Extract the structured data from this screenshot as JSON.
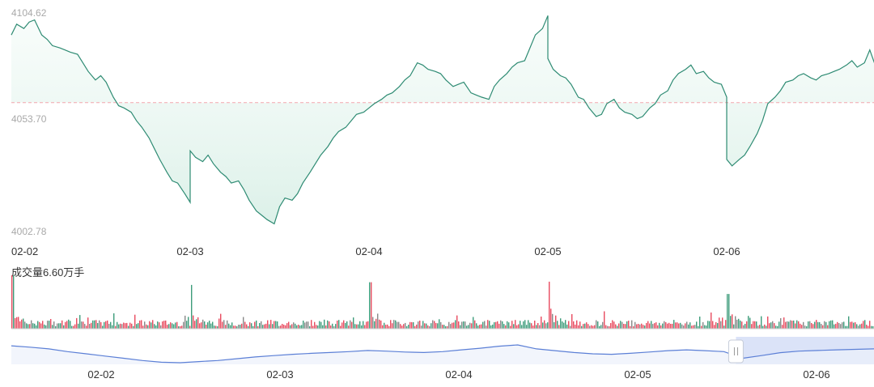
{
  "chart_data": [
    {
      "type": "area",
      "y_ticks": [
        "4104.62",
        "4053.70",
        "4002.78"
      ],
      "x_ticks": [
        "02-02",
        "02-03",
        "02-04",
        "02-05",
        "02-06"
      ],
      "ylim": [
        4002.78,
        4104.62
      ],
      "reference_line": 4062.5,
      "colors": {
        "line": "#2e8b73",
        "fill": "#e4f4ee",
        "ref": "#f4a6ad"
      },
      "series": [
        {
          "x_points": [
            0.0,
            0.03,
            0.07,
            0.1,
            0.13,
            0.17,
            0.2,
            0.23,
            0.27,
            0.3,
            0.33,
            0.37,
            0.4,
            0.43,
            0.47,
            0.5,
            0.53,
            0.57,
            0.6,
            0.63,
            0.67,
            0.7,
            0.73,
            0.77,
            0.8,
            0.83,
            0.87,
            0.9,
            0.93,
            0.97,
            1.0,
            1.0,
            1.03,
            1.07,
            1.1,
            1.13,
            1.17,
            1.2,
            1.23,
            1.27,
            1.3,
            1.33,
            1.37,
            1.4,
            1.43,
            1.47,
            1.5,
            1.53,
            1.57,
            1.6,
            1.63,
            1.67,
            1.7,
            1.73,
            1.77,
            1.8,
            1.83,
            1.87,
            1.9,
            1.93,
            1.97,
            2.0,
            2.0,
            2.03,
            2.07,
            2.1,
            2.13,
            2.17,
            2.2,
            2.23,
            2.27,
            2.3,
            2.33,
            2.37,
            2.4,
            2.43,
            2.47,
            2.5,
            2.53,
            2.57,
            2.6,
            2.63,
            2.67,
            2.7,
            2.73,
            2.77,
            2.8,
            2.83,
            2.87,
            2.9,
            2.93,
            2.97,
            3.0,
            3.0,
            3.03,
            3.07,
            3.1,
            3.13,
            3.17,
            3.2,
            3.23,
            3.27,
            3.3,
            3.33,
            3.37,
            3.4,
            3.43,
            3.47,
            3.5,
            3.53,
            3.57,
            3.6,
            3.63,
            3.67,
            3.7,
            3.73,
            3.77,
            3.8,
            3.83,
            3.87,
            3.9,
            3.93,
            3.97,
            4.0,
            4.0,
            4.03,
            4.07,
            4.1,
            4.13,
            4.17,
            4.2,
            4.23,
            4.27,
            4.3,
            4.33,
            4.37,
            4.4,
            4.43,
            4.47,
            4.5,
            4.53,
            4.57,
            4.6,
            4.63,
            4.67,
            4.7,
            4.73,
            4.77,
            4.8,
            4.83
          ],
          "values": [
            4094,
            4099,
            4097,
            4100,
            4101,
            4094,
            4092,
            4089,
            4088,
            4087,
            4086,
            4085,
            4081,
            4077,
            4073,
            4075,
            4072,
            4065,
            4061,
            4060,
            4058,
            4054,
            4051,
            4046,
            4041,
            4036,
            4030,
            4026,
            4025,
            4020,
            4016,
            4040,
            4037,
            4035,
            4038,
            4034,
            4030,
            4028,
            4025,
            4026,
            4022,
            4017,
            4012,
            4010,
            4008,
            4006,
            4014,
            4018,
            4017,
            4020,
            4025,
            4030,
            4034,
            4038,
            4042,
            4046,
            4049,
            4051,
            4054,
            4057,
            4058,
            4060,
            4060,
            4062,
            4064,
            4066,
            4067,
            4070,
            4073,
            4075,
            4081,
            4080,
            4078,
            4077,
            4076,
            4073,
            4070,
            4071,
            4072,
            4067,
            4066,
            4065,
            4064,
            4070,
            4073,
            4076,
            4079,
            4081,
            4082,
            4088,
            4094,
            4097,
            4103,
            4083,
            4078,
            4075,
            4074,
            4071,
            4065,
            4064,
            4060,
            4056,
            4057,
            4062,
            4064,
            4060,
            4058,
            4057,
            4055,
            4056,
            4060,
            4062,
            4066,
            4068,
            4073,
            4076,
            4078,
            4080,
            4076,
            4077,
            4074,
            4072,
            4071,
            4065,
            4036,
            4033,
            4036,
            4038,
            4042,
            4048,
            4054,
            4062,
            4065,
            4068,
            4072,
            4073,
            4075,
            4076,
            4074,
            4073,
            4075,
            4076,
            4077,
            4078,
            4080,
            4082,
            4079,
            4081,
            4087,
            4080
          ]
        }
      ]
    },
    {
      "type": "bar",
      "label": "成交量6.60万手",
      "colors": {
        "up": "#e84a5f",
        "down": "#3d9c7a",
        "neutral": "#888888"
      },
      "spike_days": [
        0,
        1,
        2,
        3,
        4
      ],
      "spike_values": [
        1.0,
        0.82,
        0.87,
        0.88,
        0.65
      ]
    },
    {
      "type": "area",
      "role": "navigator",
      "x_ticks": [
        "02-02",
        "02-03",
        "02-04",
        "02-05",
        "02-06"
      ],
      "values": [
        4096,
        4090,
        4082,
        4070,
        4060,
        4050,
        4040,
        4030,
        4022,
        4020,
        4025,
        4030,
        4038,
        4046,
        4052,
        4058,
        4062,
        4066,
        4070,
        4075,
        4072,
        4068,
        4066,
        4070,
        4078,
        4085,
        4094,
        4100,
        4082,
        4074,
        4066,
        4060,
        4058,
        4062,
        4068,
        4074,
        4078,
        4074,
        4070,
        4040,
        4052,
        4065,
        4072,
        4075,
        4078,
        4080,
        4082
      ],
      "colors": {
        "line": "#5b7fd6",
        "fill": "#edf1fb",
        "window": "#dbe3f8",
        "handle": "#ffffff"
      },
      "window_start": 0.84
    }
  ]
}
